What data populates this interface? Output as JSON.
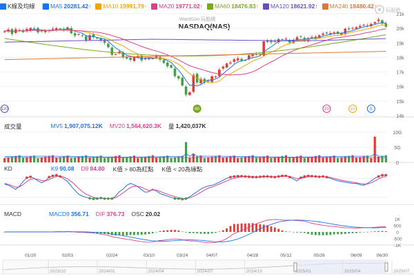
{
  "legend": {
    "title": "K線及均線",
    "items": [
      {
        "label": "MA5",
        "value": "20281.42",
        "arrow": "↑",
        "color": "#1a73e8"
      },
      {
        "label": "MA10",
        "value": "19991.79",
        "arrow": "↑",
        "color": "#f0a500"
      },
      {
        "label": "MA20",
        "value": "19771.02",
        "arrow": "↑",
        "color": "#d9418c"
      },
      {
        "label": "MA60",
        "value": "18476.83",
        "arrow": "↑",
        "color": "#7aa81e"
      },
      {
        "label": "MA120",
        "value": "18621.92",
        "arrow": "↑",
        "color": "#6a4bc4"
      },
      {
        "label": "MA240",
        "value": "18480.42",
        "arrow": "↑",
        "color": "#e0773a"
      }
    ]
  },
  "watermark": "WantGoo 玩股網",
  "brand_logo": "玩股網",
  "chart_title": "NASDAQ(NAS)",
  "volume": {
    "title": "成交量",
    "mv5_label": "MV5",
    "mv5": "1,907,075.12K",
    "mv20_label": "MV20",
    "mv20": "1,564,620.3K",
    "vol_label": "量",
    "vol": "1,420,037K"
  },
  "kd": {
    "title": "KD",
    "k_label": "K9",
    "k": "90.08",
    "d_label": "D9",
    "d": "84.80",
    "note1": "K值 > 80為紅點",
    "note2": "K值 < 20為綠點"
  },
  "macd": {
    "title": "MACD",
    "macd_label": "MACD9",
    "macd": "356.71",
    "dif_label": "DIF",
    "dif": "376.73",
    "osc_label": "OSC",
    "osc": "20.02"
  },
  "chart_data": {
    "type": "line",
    "colors": {
      "up": "#e53935",
      "down": "#43a047",
      "k": "#1a73e8",
      "d": "#d9418c",
      "vol": "#e53935"
    },
    "price_axis": {
      "ylim": [
        14000,
        21000
      ],
      "ticks": [
        "21k",
        "20k",
        "19k",
        "18k",
        "17k",
        "16k",
        "15k",
        "14k"
      ]
    },
    "price": [
      19800,
      19920,
      19610,
      19930,
      19880,
      19740,
      19950,
      20020,
      19990,
      19720,
      19790,
      19830,
      19860,
      19960,
      20010,
      19940,
      19850,
      20060,
      19660,
      19500,
      19600,
      19480,
      19180,
      19520,
      19390,
      19300,
      19150,
      19010,
      18700,
      18180,
      18210,
      18400,
      18040,
      17920,
      17830,
      18030,
      18100,
      17800,
      17950,
      17920,
      17930,
      18110,
      17840,
      17620,
      17390,
      17290,
      16710,
      16550,
      16070,
      15440,
      15610,
      16800,
      16280,
      16520,
      16290,
      16390,
      16700,
      16690,
      17160,
      17360,
      17580,
      17650,
      17870,
      17930,
      17790,
      17810,
      18140,
      18220,
      18170,
      18200,
      19100,
      19150,
      19040,
      19090,
      19250,
      19200,
      19280,
      19020,
      19180,
      19380,
      19400,
      19160,
      19320,
      19400,
      19420,
      19520,
      19640,
      19650,
      19670,
      19720,
      19620,
      19650,
      19970,
      19930,
      20020,
      20080,
      20170,
      20240,
      20180,
      20300,
      20420,
      20600,
      20330,
      20110
    ],
    "volume_axis": {
      "ticks": [
        "10G",
        "5G",
        "0"
      ],
      "ylim": [
        0,
        10
      ]
    },
    "volume_note": "billions",
    "volume_spikes": [
      [
        49,
        6.7
      ],
      [
        51,
        2.9
      ],
      [
        100,
        8.5
      ]
    ],
    "volume_base": 1.4,
    "k_values": [
      62,
      58,
      52,
      45,
      55,
      70,
      82,
      85,
      80,
      72,
      66,
      72,
      84,
      88,
      90,
      86,
      78,
      70,
      55,
      42,
      30,
      24,
      20,
      17,
      15,
      16,
      18,
      16,
      16,
      16,
      24,
      38,
      46,
      58,
      64,
      60,
      54,
      44,
      36,
      38,
      46,
      40,
      32,
      28,
      24,
      20,
      16,
      16,
      14,
      16,
      22,
      30,
      38,
      46,
      52,
      56,
      58,
      62,
      68,
      74,
      80,
      84,
      86,
      87,
      87,
      86,
      85,
      84,
      84,
      85,
      86,
      86,
      85,
      84,
      86,
      88,
      88,
      84,
      78,
      72,
      82,
      86,
      88,
      87,
      86,
      85,
      86,
      84,
      80,
      76,
      72,
      70,
      68,
      66,
      64,
      64,
      60,
      58,
      64,
      72,
      80,
      86,
      90,
      90
    ],
    "d_values": [
      64,
      61,
      57,
      52,
      53,
      60,
      70,
      77,
      79,
      77,
      73,
      72,
      76,
      82,
      86,
      87,
      84,
      78,
      70,
      60,
      48,
      38,
      30,
      25,
      20,
      18,
      17,
      17,
      16,
      16,
      19,
      26,
      34,
      43,
      51,
      55,
      55,
      52,
      46,
      42,
      43,
      43,
      39,
      34,
      30,
      26,
      22,
      19,
      17,
      16,
      18,
      23,
      29,
      36,
      43,
      49,
      53,
      57,
      62,
      67,
      72,
      77,
      80,
      83,
      85,
      86,
      86,
      85,
      84,
      84,
      85,
      85,
      85,
      85,
      85,
      86,
      87,
      86,
      83,
      79,
      80,
      82,
      85,
      86,
      86,
      86,
      85,
      85,
      83,
      80,
      77,
      74,
      72,
      70,
      68,
      66,
      64,
      62,
      62,
      66,
      72,
      78,
      84,
      85
    ],
    "macd_axis": {
      "ticks": [
        "1K",
        "500",
        "0",
        "-500",
        "-1K"
      ],
      "ylim": [
        -1000,
        1000
      ]
    },
    "x_labels": [
      "01/20",
      "02/03",
      "02/24",
      "03/10",
      "03/24",
      "04/07",
      "04/28",
      "05/12",
      "05/26",
      "06/09",
      "06/30"
    ],
    "x_label_pos": [
      7,
      17,
      29,
      39,
      48,
      56,
      67,
      76,
      85,
      95,
      102
    ],
    "period_labels": [
      "2023/10",
      "2024/01",
      "2024/04",
      "2024/07",
      "2024/10",
      "2025/01",
      "2025/04",
      "2025/07"
    ],
    "markers": [
      {
        "label": "120",
        "color": "#6a4bc4",
        "at": 0
      },
      {
        "label": "60",
        "color": "#7aa81e",
        "at": 52
      },
      {
        "label": "20",
        "color": "#d9418c",
        "at": 87
      },
      {
        "label": "10",
        "color": "#f0a500",
        "at": 94
      },
      {
        "label": "5",
        "color": "#1a73e8",
        "at": 99
      }
    ]
  }
}
